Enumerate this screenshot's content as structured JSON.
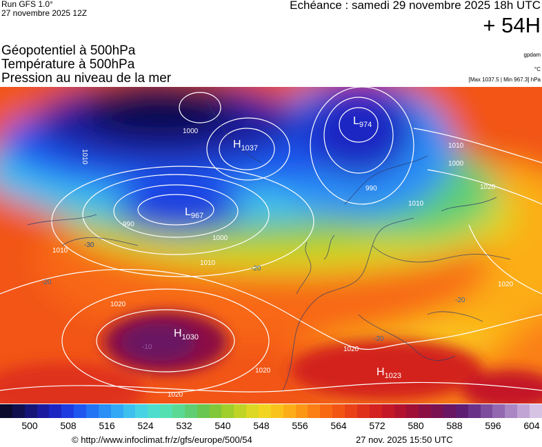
{
  "header": {
    "run_title": "Run GFS 1.0°",
    "run_date": "27 novembre 2025 12Z",
    "echeance": "Echéance : samedi 29 novembre 2025 18h UTC",
    "lead_time": "+ 54H"
  },
  "parameters": {
    "geopotential": "Géopotentiel à 500hPa",
    "temperature": "Température à 500hPa",
    "pressure": "Pression au niveau de la mer"
  },
  "units": {
    "geopotential_unit": "gpdam",
    "temperature_unit": "°C",
    "pressure_range": "[Max 1037.5 | Min 967.3] hPa"
  },
  "map": {
    "pressure_centers": [
      {
        "type": "H",
        "value": "1037"
      },
      {
        "type": "L",
        "value": "974"
      },
      {
        "type": "L",
        "value": "967"
      },
      {
        "type": "H",
        "value": "1030"
      },
      {
        "type": "H",
        "value": "1023"
      }
    ],
    "isobar_labels": [
      "1000",
      "1010",
      "990",
      "1010",
      "1000",
      "1020",
      "1020",
      "1020",
      "1010",
      "990",
      "1000",
      "1020",
      "1010",
      "1020",
      "1020",
      "1010"
    ],
    "temperature_labels": [
      "-30",
      "-20",
      "-20",
      "-20",
      "-20",
      "-10"
    ]
  },
  "legend": {
    "colors": [
      "#0b0b2e",
      "#10104f",
      "#151577",
      "#1a1a9e",
      "#1c25c2",
      "#1d3be0",
      "#1f56f0",
      "#2373f5",
      "#2a8ff7",
      "#33a8f5",
      "#3ec0ef",
      "#48d3e4",
      "#4fddce",
      "#55e0b2",
      "#5ad994",
      "#5fce73",
      "#69c650",
      "#80c739",
      "#a0ce2b",
      "#bfd425",
      "#dcd823",
      "#f2d51f",
      "#fac31b",
      "#fcae18",
      "#fc9716",
      "#fb7f14",
      "#f86813",
      "#f25413",
      "#ea4116",
      "#df301a",
      "#d3221f",
      "#c41826",
      "#b2122d",
      "#9f0f36",
      "#8c0f43",
      "#7a1252",
      "#6a1662",
      "#5e1d73",
      "#6a3188",
      "#7d4c9c",
      "#9368b0",
      "#aa86c3",
      "#c1a4d4",
      "#d6c2e3"
    ],
    "ticks": [
      "500",
      "508",
      "516",
      "524",
      "532",
      "540",
      "548",
      "556",
      "564",
      "572",
      "580",
      "588",
      "596",
      "604"
    ]
  },
  "footer": {
    "source_url": "© http://www.infoclimat.fr/z/gfs/europe/500/54",
    "generated": "27 nov. 2025 15:50 UTC"
  }
}
